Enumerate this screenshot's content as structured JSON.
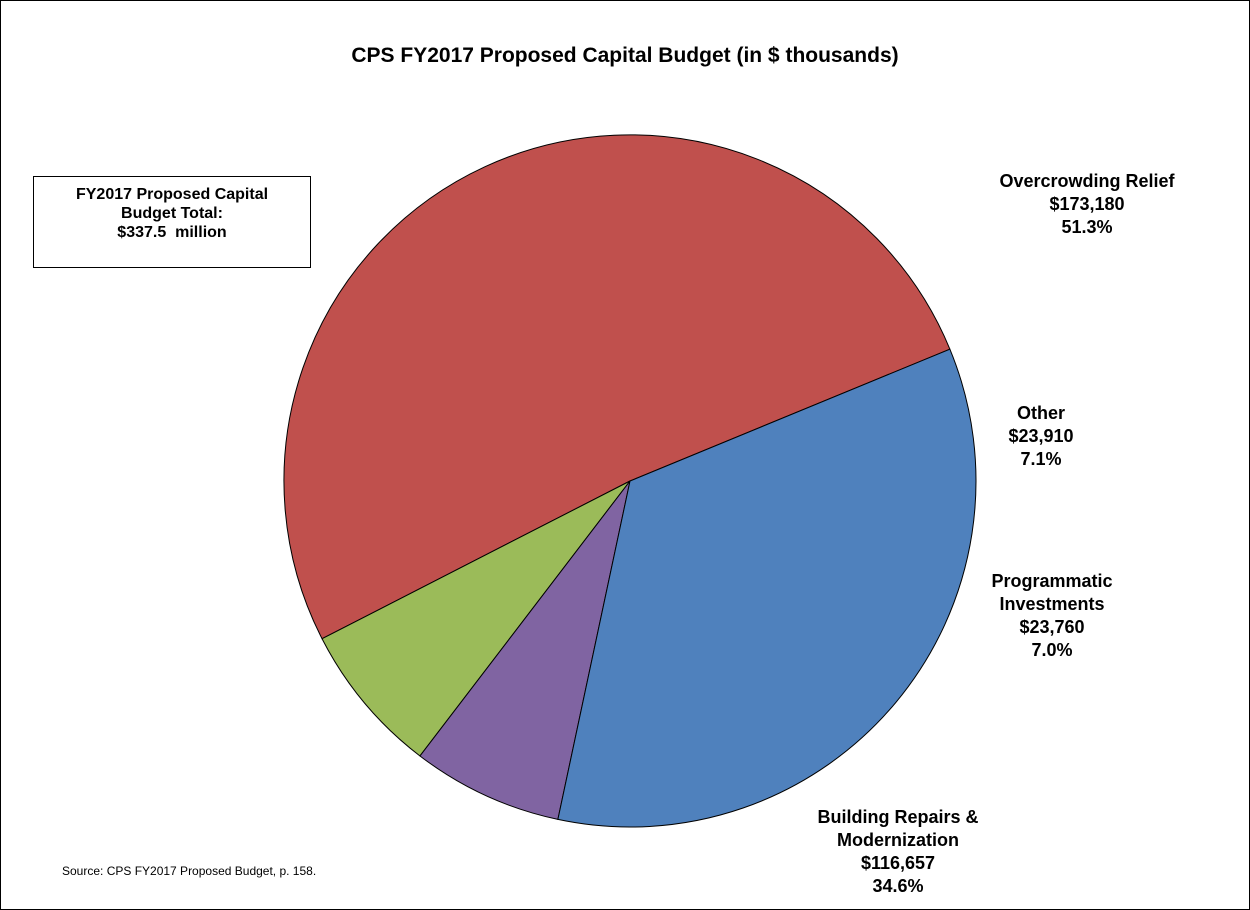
{
  "chart_data": {
    "type": "pie",
    "title": "CPS FY2017 Proposed Capital Budget (in $ thousands)",
    "slices": [
      {
        "label_lines": [
          "Overcrowding Relief"
        ],
        "value": 173180,
        "value_text": "$173,180",
        "percent_text": "51.3%",
        "color": "#C0504D"
      },
      {
        "label_lines": [
          "Other"
        ],
        "value": 23910,
        "value_text": "$23,910",
        "percent_text": "7.1%",
        "color": "#9BBB59"
      },
      {
        "label_lines": [
          "Programmatic",
          "Investments"
        ],
        "value": 23760,
        "value_text": "$23,760",
        "percent_text": "7.0%",
        "color": "#8064A2"
      },
      {
        "label_lines": [
          "Building Repairs &",
          "Modernization"
        ],
        "value": 116657,
        "value_text": "$116,657",
        "percent_text": "34.6%",
        "color": "#4F81BD"
      }
    ],
    "total_box": [
      "FY2017 Proposed Capital",
      "Budget Total:",
      "$337.5  million"
    ],
    "source": "Source: CPS FY2017 Proposed Budget, p. 158."
  }
}
